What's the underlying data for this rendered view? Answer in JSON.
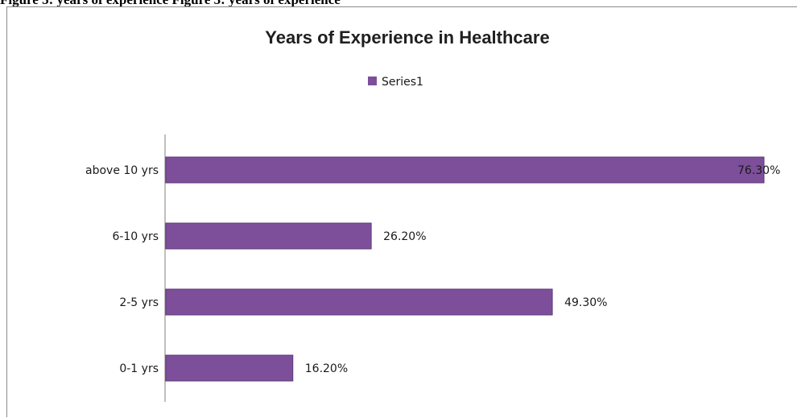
{
  "caption": "Figure 3: years of experience Figure 3: years of experience",
  "colors": {
    "bar": "#7d4f9a",
    "bar_edge": "#5e3778",
    "axis": "#808080"
  },
  "chart_data": {
    "type": "bar",
    "orientation": "horizontal",
    "title": "Years of Experience in Healthcare",
    "categories": [
      "0-1 yrs",
      "2-5 yrs",
      "6-10 yrs",
      "above 10 yrs"
    ],
    "series": [
      {
        "name": "Series1",
        "values": [
          16.2,
          49.3,
          26.2,
          76.3
        ],
        "labels": [
          "16.20%",
          "49.30%",
          "26.20%",
          "76.30%"
        ]
      }
    ],
    "xlim": [
      0,
      76.3
    ],
    "legend": "top-center",
    "grid": false,
    "xlabel": "",
    "ylabel": ""
  }
}
